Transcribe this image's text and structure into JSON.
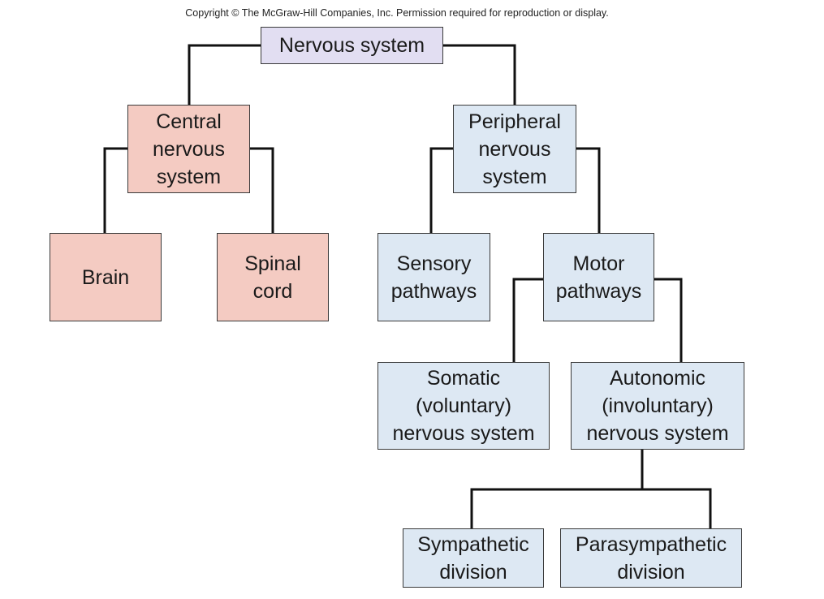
{
  "copyright": "Copyright © The McGraw-Hill Companies, Inc. Permission required for reproduction or display.",
  "colors": {
    "root": "#e2def2",
    "central": "#f4cbc2",
    "peripheral": "#dde8f3",
    "lines": "#111111"
  },
  "nodes": {
    "nervous_system": {
      "lines": [
        "Nervous system"
      ]
    },
    "central": {
      "lines": [
        "Central",
        "nervous",
        "system"
      ]
    },
    "peripheral": {
      "lines": [
        "Peripheral",
        "nervous",
        "system"
      ]
    },
    "brain": {
      "lines": [
        "Brain"
      ]
    },
    "spinal": {
      "lines": [
        "Spinal",
        "cord"
      ]
    },
    "sensory": {
      "lines": [
        "Sensory",
        "pathways"
      ]
    },
    "motor": {
      "lines": [
        "Motor",
        "pathways"
      ]
    },
    "somatic": {
      "lines": [
        "Somatic",
        "(voluntary)",
        "nervous system"
      ]
    },
    "autonomic": {
      "lines": [
        "Autonomic",
        "(involuntary)",
        "nervous system"
      ]
    },
    "sympathetic": {
      "lines": [
        "Sympathetic",
        "division"
      ]
    },
    "parasympathetic": {
      "lines": [
        "Parasympathetic",
        "division"
      ]
    }
  }
}
